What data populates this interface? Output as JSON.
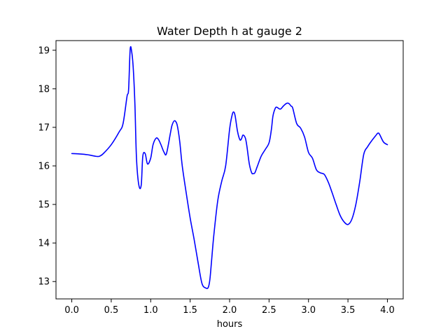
{
  "chart_data": {
    "type": "line",
    "title": "Water Depth h at gauge 2",
    "xlabel": "hours",
    "ylabel": "",
    "xlim": [
      -0.2,
      4.2
    ],
    "ylim": [
      12.55,
      19.25
    ],
    "xticks": [
      0.0,
      0.5,
      1.0,
      1.5,
      2.0,
      2.5,
      3.0,
      3.5,
      4.0
    ],
    "xtick_labels": [
      "0.0",
      "0.5",
      "1.0",
      "1.5",
      "2.0",
      "2.5",
      "3.0",
      "3.5",
      "4.0"
    ],
    "yticks": [
      13,
      14,
      15,
      16,
      17,
      18,
      19
    ],
    "ytick_labels": [
      "13",
      "14",
      "15",
      "16",
      "17",
      "18",
      "19"
    ],
    "grid": false,
    "legend": "none",
    "series": [
      {
        "color": "#0000ff",
        "x": [
          0.0,
          0.1,
          0.2,
          0.3,
          0.35,
          0.4,
          0.5,
          0.6,
          0.65,
          0.7,
          0.72,
          0.74,
          0.76,
          0.78,
          0.8,
          0.82,
          0.85,
          0.88,
          0.9,
          0.93,
          0.96,
          1.0,
          1.03,
          1.07,
          1.1,
          1.13,
          1.17,
          1.2,
          1.25,
          1.27,
          1.3,
          1.33,
          1.35,
          1.37,
          1.4,
          1.45,
          1.5,
          1.55,
          1.6,
          1.65,
          1.7,
          1.73,
          1.75,
          1.77,
          1.8,
          1.85,
          1.9,
          1.95,
          2.0,
          2.03,
          2.05,
          2.07,
          2.1,
          2.13,
          2.15,
          2.17,
          2.2,
          2.22,
          2.25,
          2.28,
          2.3,
          2.32,
          2.35,
          2.4,
          2.45,
          2.5,
          2.53,
          2.55,
          2.58,
          2.6,
          2.63,
          2.65,
          2.68,
          2.72,
          2.75,
          2.78,
          2.8,
          2.85,
          2.9,
          2.95,
          3.0,
          3.05,
          3.1,
          3.15,
          3.2,
          3.25,
          3.3,
          3.35,
          3.4,
          3.45,
          3.5,
          3.55,
          3.6,
          3.65,
          3.7,
          3.75,
          3.8,
          3.85,
          3.88,
          3.9,
          3.95,
          4.0
        ],
        "y": [
          16.32,
          16.31,
          16.29,
          16.25,
          16.25,
          16.32,
          16.55,
          16.88,
          17.1,
          17.8,
          17.98,
          19.02,
          18.95,
          18.5,
          17.6,
          16.2,
          15.5,
          15.5,
          16.25,
          16.32,
          16.05,
          16.2,
          16.55,
          16.72,
          16.68,
          16.55,
          16.35,
          16.32,
          16.85,
          17.05,
          17.17,
          17.1,
          16.9,
          16.6,
          16.0,
          15.3,
          14.65,
          14.1,
          13.5,
          12.95,
          12.83,
          12.85,
          13.05,
          13.5,
          14.2,
          15.1,
          15.6,
          16.0,
          16.95,
          17.3,
          17.4,
          17.3,
          16.9,
          16.68,
          16.7,
          16.8,
          16.72,
          16.5,
          16.05,
          15.82,
          15.8,
          15.82,
          15.98,
          16.25,
          16.42,
          16.6,
          16.95,
          17.3,
          17.5,
          17.52,
          17.48,
          17.48,
          17.55,
          17.62,
          17.62,
          17.55,
          17.5,
          17.1,
          16.98,
          16.75,
          16.35,
          16.2,
          15.9,
          15.82,
          15.78,
          15.58,
          15.3,
          15.0,
          14.72,
          14.55,
          14.48,
          14.62,
          15.0,
          15.6,
          16.3,
          16.5,
          16.65,
          16.78,
          16.85,
          16.82,
          16.62,
          16.55
        ]
      }
    ]
  }
}
